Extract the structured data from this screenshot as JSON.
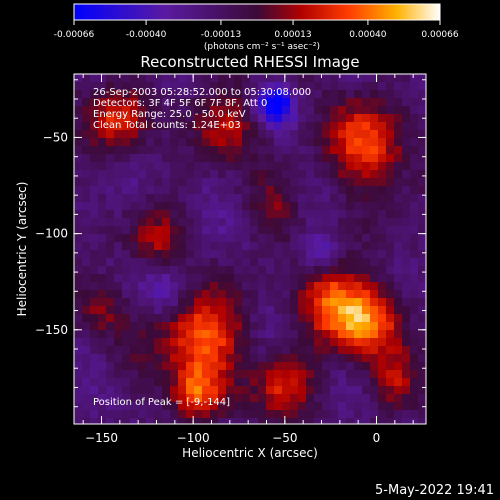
{
  "window": {
    "footer_date": "5-May-2022 19:41"
  },
  "colorbar": {
    "tick_labels": [
      "-0.00066",
      "-0.00040",
      "-0.00013",
      "0.00013",
      "0.00040",
      "0.00066"
    ],
    "units_label": "(photons cm⁻² s⁻¹ asec⁻²)",
    "range": [
      -0.00066,
      0.00066
    ]
  },
  "chart_data": {
    "type": "heatmap",
    "title": "Reconstructed RHESSI Image",
    "xlabel": "Heliocentric X (arcsec)",
    "ylabel": "Heliocentric Y (arcsec)",
    "xlim": [
      -165,
      27
    ],
    "ylim": [
      -199,
      -17
    ],
    "x_ticks": [
      -150,
      -100,
      -50,
      0
    ],
    "y_ticks": [
      -150,
      -100,
      -50
    ],
    "annotations": [
      "26-Sep-2003 05:28:52.000 to 05:30:08.000",
      "Detectors: 3F 4F 5F 6F 7F 8F, Att 0",
      "Energy Range: 25.0 - 50.0 keV",
      "Clean    Total counts: 1.24E+03"
    ],
    "peak_label": "Position of Peak = [-9,-144]",
    "peak_position": [
      -9,
      -144
    ],
    "colormap": "blue-purple-red-yellow-white",
    "sources": [
      {
        "x": -9,
        "y": -144,
        "amp": 0.00066,
        "r": 14
      },
      {
        "x": -95,
        "y": -155,
        "amp": 0.00052,
        "r": 16
      },
      {
        "x": -98,
        "y": -183,
        "amp": 0.00048,
        "r": 10
      },
      {
        "x": -5,
        "y": -55,
        "amp": 0.00047,
        "r": 16
      },
      {
        "x": -140,
        "y": -40,
        "amp": 0.00038,
        "r": 12
      },
      {
        "x": -80,
        "y": -45,
        "amp": 0.00036,
        "r": 12
      },
      {
        "x": -50,
        "y": -180,
        "amp": 0.00033,
        "r": 12
      },
      {
        "x": -28,
        "y": -132,
        "amp": 0.00028,
        "r": 12
      },
      {
        "x": 10,
        "y": -178,
        "amp": 0.00026,
        "r": 10
      },
      {
        "x": -120,
        "y": -104,
        "amp": 0.00026,
        "r": 10
      },
      {
        "x": -150,
        "y": -140,
        "amp": 0.00024,
        "r": 10
      },
      {
        "x": -55,
        "y": -92,
        "amp": 0.00018,
        "r": 10
      },
      {
        "x": -55,
        "y": -33,
        "amp": -0.00055,
        "r": 7
      },
      {
        "x": -30,
        "y": -110,
        "amp": -0.00028,
        "r": 6
      },
      {
        "x": -115,
        "y": -130,
        "amp": -0.00018,
        "r": 8
      }
    ]
  }
}
